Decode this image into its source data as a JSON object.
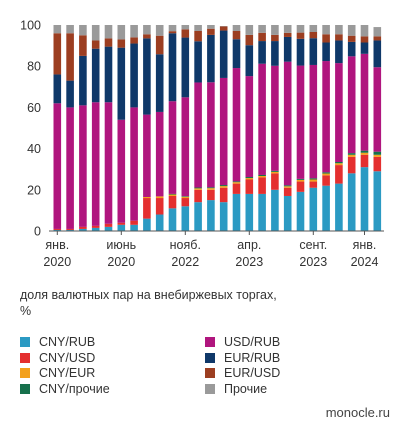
{
  "chart_data": {
    "type": "bar",
    "stacked": true,
    "ylim": [
      0,
      100
    ],
    "yticks": [
      "0",
      "20",
      "40",
      "60",
      "80",
      "100"
    ],
    "xtick_labels": [
      {
        "index": 0,
        "lines": [
          "янв.",
          "2020"
        ]
      },
      {
        "index": 5,
        "lines": [
          "июнь",
          "2020"
        ]
      },
      {
        "index": 10,
        "lines": [
          "нояб.",
          "2022"
        ]
      },
      {
        "index": 15,
        "lines": [
          "апр.",
          "2023"
        ]
      },
      {
        "index": 20,
        "lines": [
          "сент.",
          "2023"
        ]
      },
      {
        "index": 24,
        "lines": [
          "янв.",
          "2024"
        ]
      }
    ],
    "grid": false,
    "series": [
      {
        "name": "CNY/RUB",
        "color": "#2b9ac3",
        "values": [
          0.5,
          0.5,
          1,
          1.5,
          2,
          3,
          3,
          6,
          8,
          11,
          12,
          14,
          15,
          14,
          18,
          18,
          18,
          20,
          17,
          19,
          21,
          22,
          23,
          28,
          31,
          29
        ]
      },
      {
        "name": "CNY/USD",
        "color": "#e42f2f",
        "values": [
          0.5,
          0.5,
          1,
          1,
          1.5,
          1,
          2,
          10,
          8,
          6,
          4,
          6,
          5,
          7,
          5,
          7,
          8,
          8,
          4,
          5,
          3,
          5,
          9,
          8,
          6,
          7
        ]
      },
      {
        "name": "CNY/EUR",
        "color": "#f3a11d",
        "values": [
          0,
          0,
          0,
          0,
          0,
          0,
          0,
          0.5,
          0.8,
          0.7,
          0.6,
          0.7,
          0.8,
          0.8,
          0.7,
          0.7,
          0.7,
          0.7,
          0.7,
          0.8,
          1,
          0.9,
          0.9,
          1,
          1,
          1
        ]
      },
      {
        "name": "CNY/прочие",
        "color": "#16704c",
        "values": [
          0,
          0,
          0,
          0,
          0,
          0,
          0,
          0,
          0,
          0.3,
          0.3,
          0.4,
          0.4,
          0.5,
          0.4,
          0.5,
          0.5,
          0.5,
          0.5,
          0.5,
          0.6,
          0.6,
          0.6,
          0.8,
          1,
          1.5
        ]
      },
      {
        "name": "USD/RUB",
        "color": "#b0157e",
        "values": [
          61,
          59,
          59,
          60,
          59,
          50,
          55,
          40,
          41,
          45,
          48,
          51,
          51,
          52,
          55,
          49,
          54,
          51,
          60,
          55,
          55,
          54,
          48,
          47,
          47,
          41
        ]
      },
      {
        "name": "EUR/RUB",
        "color": "#0f3869",
        "values": [
          14,
          13,
          24,
          26,
          27,
          35,
          31,
          37,
          28,
          33,
          29,
          20,
          23,
          23,
          14,
          15,
          11,
          12,
          12,
          13,
          13,
          9,
          11,
          7,
          5.5,
          13
        ]
      },
      {
        "name": "EUR/USD",
        "color": "#9c3e21",
        "values": [
          20,
          23,
          10,
          4,
          4,
          4,
          3,
          2,
          9,
          1,
          4,
          5,
          3,
          2,
          4,
          5,
          4,
          3,
          2,
          3,
          3,
          4,
          3,
          3,
          3,
          2
        ]
      },
      {
        "name": "Прочие",
        "color": "#9a9a9a",
        "values": [
          4,
          4,
          5,
          7.5,
          6.5,
          7,
          6,
          4.5,
          5.2,
          3,
          2.1,
          2.9,
          1.8,
          0.2,
          2.9,
          4.8,
          3.8,
          4.8,
          3.8,
          3.7,
          3.4,
          4.5,
          4.5,
          5.2,
          5.5,
          4.5
        ]
      }
    ]
  },
  "caption": {
    "line1": "доля валютных пар на внебиржевых торгах,",
    "line2": "%"
  },
  "legend": [
    {
      "label": "CNY/RUB",
      "color": "#2b9ac3"
    },
    {
      "label": "USD/RUB",
      "color": "#b0157e"
    },
    {
      "label": "CNY/USD",
      "color": "#e42f2f"
    },
    {
      "label": "EUR/RUB",
      "color": "#0f3869"
    },
    {
      "label": "CNY/EUR",
      "color": "#f3a11d"
    },
    {
      "label": "EUR/USD",
      "color": "#9c3e21"
    },
    {
      "label": "CNY/прочие",
      "color": "#16704c"
    },
    {
      "label": "Прочие",
      "color": "#9a9a9a"
    }
  ],
  "source": "monocle.ru"
}
